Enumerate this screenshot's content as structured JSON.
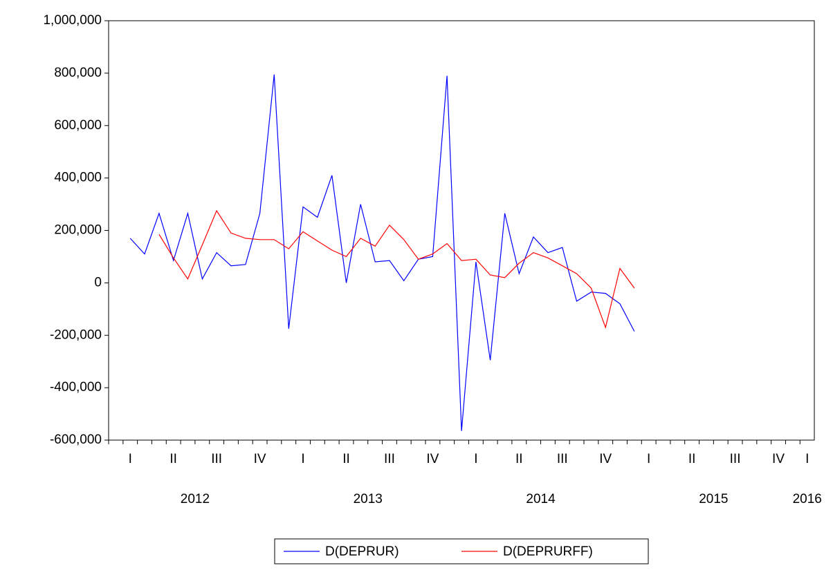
{
  "chart_data": {
    "type": "line",
    "x": [
      2012.125,
      2012.208,
      2012.292,
      2012.375,
      2012.458,
      2012.542,
      2012.625,
      2012.708,
      2012.792,
      2012.875,
      2012.958,
      2013.042,
      2013.125,
      2013.208,
      2013.292,
      2013.375,
      2013.458,
      2013.542,
      2013.625,
      2013.708,
      2013.792,
      2013.875,
      2013.958,
      2014.042,
      2014.125,
      2014.208,
      2014.292,
      2014.375,
      2014.458,
      2014.542,
      2014.625,
      2014.708,
      2014.792,
      2014.875,
      2014.958,
      2015.042
    ],
    "series": [
      {
        "name": "D(DEPRUR)",
        "color": "#0000ff",
        "values": [
          170000,
          110000,
          265000,
          85000,
          265000,
          15000,
          115000,
          65000,
          70000,
          265000,
          795000,
          -175000,
          290000,
          250000,
          410000,
          0,
          300000,
          80000,
          85000,
          8000,
          90000,
          100000,
          790000,
          -565000,
          80000,
          -295000,
          265000,
          35000,
          175000,
          115000,
          135000,
          -70000,
          -35000,
          -40000,
          -80000,
          -185000
        ]
      },
      {
        "name": "D(DEPRURFF)",
        "color": "#ff0000",
        "values": [
          null,
          null,
          185000,
          95000,
          15000,
          145000,
          275000,
          190000,
          170000,
          165000,
          165000,
          130000,
          195000,
          160000,
          125000,
          100000,
          170000,
          140000,
          220000,
          165000,
          90000,
          110000,
          150000,
          85000,
          90000,
          30000,
          20000,
          75000,
          115000,
          95000,
          65000,
          35000,
          -20000,
          -170000,
          55000,
          -20000
        ]
      }
    ],
    "xlim": [
      2012,
      2016.083
    ],
    "xticks": [
      {
        "value": 2012.125,
        "label": "I"
      },
      {
        "value": 2012.375,
        "label": "II"
      },
      {
        "value": 2012.625,
        "label": "III"
      },
      {
        "value": 2012.875,
        "label": "IV"
      },
      {
        "value": 2013.125,
        "label": "I"
      },
      {
        "value": 2013.375,
        "label": "II"
      },
      {
        "value": 2013.625,
        "label": "III"
      },
      {
        "value": 2013.875,
        "label": "IV"
      },
      {
        "value": 2014.125,
        "label": "I"
      },
      {
        "value": 2014.375,
        "label": "II"
      },
      {
        "value": 2014.625,
        "label": "III"
      },
      {
        "value": 2014.875,
        "label": "IV"
      },
      {
        "value": 2015.125,
        "label": "I"
      },
      {
        "value": 2015.375,
        "label": "II"
      },
      {
        "value": 2015.625,
        "label": "III"
      },
      {
        "value": 2015.875,
        "label": "IV"
      },
      {
        "value": 2016.042,
        "label": "I"
      }
    ],
    "year_labels": [
      {
        "value": 2012.5,
        "label": "2012"
      },
      {
        "value": 2013.5,
        "label": "2013"
      },
      {
        "value": 2014.5,
        "label": "2014"
      },
      {
        "value": 2015.5,
        "label": "2015"
      },
      {
        "value": 2016.042,
        "label": "2016"
      }
    ],
    "ylim": [
      -600000,
      1000000
    ],
    "yticks": [
      {
        "value": -600000,
        "label": "-600,000"
      },
      {
        "value": -400000,
        "label": "-400,000"
      },
      {
        "value": -200000,
        "label": "-200,000"
      },
      0,
      {
        "value": 200000,
        "label": "200,000"
      },
      {
        "value": 400000,
        "label": "400,000"
      },
      {
        "value": 600000,
        "label": "600,000"
      },
      {
        "value": 800000,
        "label": "800,000"
      },
      {
        "value": 1000000,
        "label": "1,000,000"
      }
    ],
    "legend": "bottom"
  }
}
